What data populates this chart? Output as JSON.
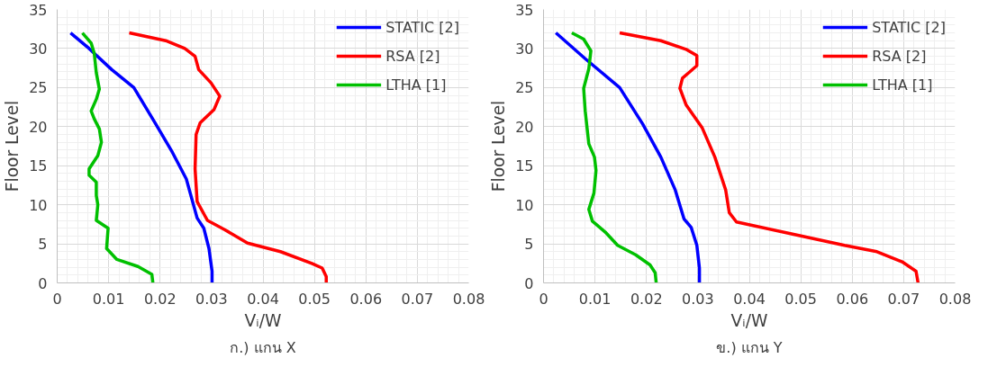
{
  "chart_data": [
    {
      "type": "line",
      "title": "ก.) แกน X",
      "xlabel": "Vᵢ/W",
      "ylabel": "Floor Level",
      "xlim": [
        0,
        0.08
      ],
      "xticks": [
        0,
        0.01,
        0.02,
        0.03,
        0.04,
        0.05,
        0.06,
        0.07,
        0.08
      ],
      "ylim": [
        0,
        35
      ],
      "yticks": [
        0,
        5,
        10,
        15,
        20,
        25,
        30,
        35
      ],
      "grid": true,
      "legend": "top right",
      "line_style": "solid",
      "marker": "none",
      "series": [
        {
          "name": "STATIC [2]",
          "color": "#0000ff",
          "x": [
            0.0026,
            0.0062,
            0.0106,
            0.0149,
            0.019,
            0.0224,
            0.0251,
            0.0272,
            0.0285,
            0.0295,
            0.0301,
            0.0301
          ],
          "values": [
            32,
            30,
            27.3,
            25,
            20.5,
            16.7,
            13.3,
            8.3,
            7,
            4.4,
            1.5,
            0
          ]
        },
        {
          "name": "RSA [2]",
          "color": "#ff0000",
          "x": [
            0.014,
            0.0211,
            0.0248,
            0.0268,
            0.0275,
            0.0299,
            0.0316,
            0.0305,
            0.0278,
            0.027,
            0.0268,
            0.0272,
            0.0292,
            0.0326,
            0.037,
            0.0434,
            0.0495,
            0.0515,
            0.0523,
            0.0523
          ],
          "values": [
            32,
            31,
            30,
            29,
            27.3,
            25.6,
            23.9,
            22.2,
            20.5,
            19,
            14.6,
            10.4,
            8,
            6.8,
            5.1,
            4,
            2.5,
            1.9,
            0.8,
            0
          ]
        },
        {
          "name": "LTHA [1]",
          "color": "#00c000",
          "x": [
            0.0049,
            0.0066,
            0.0072,
            0.0076,
            0.0082,
            0.0076,
            0.0066,
            0.0072,
            0.0082,
            0.0086,
            0.0079,
            0.0062,
            0.0062,
            0.0076,
            0.0076,
            0.0079,
            0.0076,
            0.0099,
            0.0096,
            0.0116,
            0.0157,
            0.0184,
            0.0186
          ],
          "values": [
            32,
            30.7,
            29.4,
            26.9,
            24.8,
            23.5,
            22,
            21,
            19.7,
            18,
            16.3,
            14.6,
            13.8,
            12.9,
            11.2,
            10,
            8,
            7,
            4.4,
            3,
            2.1,
            1.1,
            0
          ]
        }
      ]
    },
    {
      "type": "line",
      "title": "ข.) แกน Y",
      "xlabel": "Vᵢ/W",
      "ylabel": "Floor Level",
      "xlim": [
        0,
        0.08
      ],
      "xticks": [
        0,
        0.01,
        0.02,
        0.03,
        0.04,
        0.05,
        0.06,
        0.07,
        0.08
      ],
      "ylim": [
        0,
        35
      ],
      "yticks": [
        0,
        5,
        10,
        15,
        20,
        25,
        30,
        35
      ],
      "grid": true,
      "legend": "top right",
      "line_style": "solid",
      "marker": "none",
      "series": [
        {
          "name": "STATIC [2]",
          "color": "#0000ff",
          "x": [
            0.0024,
            0.0081,
            0.0148,
            0.0193,
            0.0228,
            0.0256,
            0.0273,
            0.0287,
            0.0298,
            0.0303,
            0.0303
          ],
          "values": [
            32,
            28.7,
            25,
            20.3,
            16.1,
            11.9,
            8.2,
            7.1,
            4.8,
            1.9,
            0
          ]
        },
        {
          "name": "RSA [2]",
          "color": "#ff0000",
          "x": [
            0.0148,
            0.0228,
            0.0277,
            0.0298,
            0.0298,
            0.027,
            0.0265,
            0.0277,
            0.0308,
            0.0333,
            0.0354,
            0.0361,
            0.0375,
            0.048,
            0.0585,
            0.0648,
            0.0697,
            0.0724,
            0.0728
          ],
          "values": [
            32,
            31,
            29.9,
            29.1,
            27.8,
            26.2,
            24.9,
            22.8,
            19.9,
            16.1,
            11.9,
            9,
            7.8,
            6.3,
            4.8,
            4,
            2.7,
            1.5,
            0
          ]
        },
        {
          "name": "LTHA [1]",
          "color": "#00c000",
          "x": [
            0.0055,
            0.0078,
            0.0092,
            0.0088,
            0.0078,
            0.0081,
            0.0088,
            0.0099,
            0.0102,
            0.0098,
            0.0088,
            0.0095,
            0.012,
            0.0144,
            0.0179,
            0.0207,
            0.0217,
            0.0219
          ],
          "values": [
            32,
            31.2,
            29.7,
            27.4,
            24.9,
            22,
            17.8,
            16.1,
            14.4,
            11.5,
            9.4,
            7.9,
            6.5,
            4.8,
            3.6,
            2.3,
            1.3,
            0
          ]
        }
      ]
    }
  ]
}
